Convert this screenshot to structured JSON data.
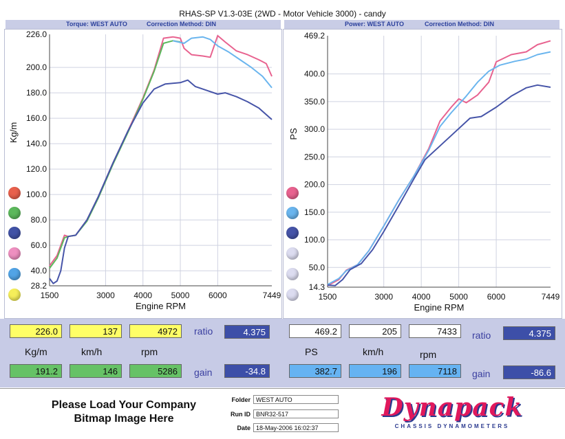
{
  "title": "RHAS-SP V1.3-03E  (2WD - Motor Vehicle 3000) -  candy",
  "left_header": {
    "label": "Torque: WEST AUTO",
    "correction": "Correction Method: DIN"
  },
  "right_header": {
    "label": "Power: WEST AUTO",
    "correction": "Correction Method: DIN"
  },
  "legend_colors": [
    "#e8604c",
    "#5cb85c",
    "#4152a6",
    "#ee8fc0",
    "#52a4e6",
    "#f5ee5a",
    "#e8628f",
    "#6ab5ee",
    "#4654a8",
    "#dcdcf0",
    "#dcdcf0",
    "#dcdcf0"
  ],
  "chart_data": [
    {
      "type": "line",
      "ylabel": "Kg/m",
      "xlabel": "Engine RPM",
      "ylim": [
        28.2,
        226.0
      ],
      "xlim": [
        1500,
        7449
      ],
      "x_ticks": [
        1500,
        3000,
        4000,
        5000,
        6000,
        7449
      ],
      "y_ticks": [
        28.2,
        40.0,
        60.0,
        80.0,
        100.0,
        120.0,
        140.0,
        160.0,
        180.0,
        200.0,
        226.0
      ],
      "y_tick_labels": [
        "28.2",
        "40.0",
        "60.0",
        "80.0",
        "100.0",
        "120.0",
        "140.0",
        "160.0",
        "180.0",
        "200.0",
        "226.0"
      ],
      "grid": true,
      "series": [
        {
          "color": "#e8628f",
          "points": [
            [
              1500,
              44
            ],
            [
              1700,
              52
            ],
            [
              1900,
              68
            ],
            [
              2000,
              67
            ],
            [
              2200,
              68
            ],
            [
              2500,
              80
            ],
            [
              2800,
              98
            ],
            [
              3200,
              125
            ],
            [
              3600,
              150
            ],
            [
              4000,
              176
            ],
            [
              4300,
              198
            ],
            [
              4550,
              223
            ],
            [
              4800,
              224
            ],
            [
              5000,
              223
            ],
            [
              5100,
              215
            ],
            [
              5300,
              210
            ],
            [
              5600,
              209
            ],
            [
              5800,
              208
            ],
            [
              6000,
              225
            ],
            [
              6200,
              220
            ],
            [
              6500,
              213
            ],
            [
              6800,
              210
            ],
            [
              7100,
              206
            ],
            [
              7300,
              203
            ],
            [
              7449,
              193
            ]
          ]
        },
        {
          "color": "#5cb85c",
          "points": [
            [
              1500,
              42
            ],
            [
              1700,
              50
            ],
            [
              1900,
              66
            ],
            [
              2000,
              67
            ],
            [
              2200,
              68
            ],
            [
              2500,
              79
            ],
            [
              2800,
              97
            ],
            [
              3200,
              124
            ],
            [
              3600,
              149
            ],
            [
              4000,
              175
            ],
            [
              4300,
              197
            ],
            [
              4550,
              219
            ],
            [
              4800,
              221
            ],
            [
              5000,
              220
            ]
          ]
        },
        {
          "color": "#6ab5ee",
          "points": [
            [
              4800,
              221
            ],
            [
              5100,
              219
            ],
            [
              5300,
              223
            ],
            [
              5600,
              224
            ],
            [
              5800,
              222
            ],
            [
              6000,
              217
            ],
            [
              6300,
              212
            ],
            [
              6600,
              206
            ],
            [
              6900,
              200
            ],
            [
              7200,
              193
            ],
            [
              7449,
              184
            ]
          ]
        },
        {
          "color": "#4654a8",
          "points": [
            [
              1500,
              34
            ],
            [
              1600,
              30
            ],
            [
              1700,
              32
            ],
            [
              1800,
              40
            ],
            [
              1900,
              58
            ],
            [
              2000,
              67
            ],
            [
              2200,
              68
            ],
            [
              2500,
              80
            ],
            [
              2800,
              98
            ],
            [
              3200,
              125
            ],
            [
              3600,
              150
            ],
            [
              4000,
              172
            ],
            [
              4300,
              183
            ],
            [
              4600,
              187
            ],
            [
              5000,
              188
            ],
            [
              5200,
              190
            ],
            [
              5400,
              185
            ],
            [
              5700,
              182
            ],
            [
              6000,
              179
            ],
            [
              6200,
              180
            ],
            [
              6500,
              177
            ],
            [
              6800,
              173
            ],
            [
              7100,
              168
            ],
            [
              7449,
              159
            ]
          ]
        }
      ]
    },
    {
      "type": "line",
      "ylabel": "PS",
      "xlabel": "Engine RPM",
      "ylim": [
        14.3,
        469.2
      ],
      "xlim": [
        1500,
        7449
      ],
      "x_ticks": [
        1500,
        3000,
        4000,
        5000,
        6000,
        7449
      ],
      "y_ticks": [
        14.3,
        50.0,
        100.0,
        150.0,
        200.0,
        250.0,
        300.0,
        350.0,
        400.0,
        469.2
      ],
      "y_tick_labels": [
        "14.3",
        "50.0",
        "100.0",
        "150.0",
        "200.0",
        "250.0",
        "300.0",
        "350.0",
        "400.0",
        "469.2"
      ],
      "grid": true,
      "series": [
        {
          "color": "#e8628f",
          "points": [
            [
              1500,
              17
            ],
            [
              1800,
              28
            ],
            [
              2000,
              45
            ],
            [
              2300,
              55
            ],
            [
              2600,
              80
            ],
            [
              3000,
              125
            ],
            [
              3400,
              172
            ],
            [
              3800,
              215
            ],
            [
              4200,
              265
            ],
            [
              4500,
              315
            ],
            [
              4800,
              340
            ],
            [
              5000,
              355
            ],
            [
              5200,
              348
            ],
            [
              5500,
              362
            ],
            [
              5800,
              385
            ],
            [
              6000,
              422
            ],
            [
              6400,
              435
            ],
            [
              6800,
              440
            ],
            [
              7100,
              453
            ],
            [
              7449,
              460
            ]
          ]
        },
        {
          "color": "#6ab5ee",
          "points": [
            [
              1500,
              19
            ],
            [
              1800,
              30
            ],
            [
              2000,
              44
            ],
            [
              2300,
              55
            ],
            [
              2600,
              80
            ],
            [
              3000,
              125
            ],
            [
              3400,
              172
            ],
            [
              3800,
              215
            ],
            [
              4200,
              262
            ],
            [
              4500,
              305
            ],
            [
              4800,
              330
            ],
            [
              5200,
              360
            ],
            [
              5500,
              385
            ],
            [
              5800,
              405
            ],
            [
              6100,
              416
            ],
            [
              6500,
              423
            ],
            [
              6800,
              427
            ],
            [
              7100,
              435
            ],
            [
              7449,
              440
            ]
          ]
        },
        {
          "color": "#4654a8",
          "points": [
            [
              1500,
              18
            ],
            [
              1700,
              17
            ],
            [
              1900,
              28
            ],
            [
              2100,
              46
            ],
            [
              2400,
              57
            ],
            [
              2700,
              82
            ],
            [
              3000,
              115
            ],
            [
              3400,
              162
            ],
            [
              3800,
              210
            ],
            [
              4100,
              245
            ],
            [
              4500,
              270
            ],
            [
              4900,
              295
            ],
            [
              5300,
              320
            ],
            [
              5600,
              323
            ],
            [
              6000,
              340
            ],
            [
              6400,
              360
            ],
            [
              6800,
              375
            ],
            [
              7100,
              380
            ],
            [
              7449,
              376
            ]
          ]
        }
      ]
    }
  ],
  "readings": {
    "row1_left": [
      "226.0",
      "137",
      "4972"
    ],
    "row1_right": [
      "469.2",
      "205",
      "7433"
    ],
    "row2_left": [
      "191.2",
      "146",
      "5286"
    ],
    "row2_right": [
      "382.7",
      "196",
      "7118"
    ],
    "labels_left": [
      "Kg/m",
      "km/h",
      "rpm"
    ],
    "labels_right": [
      "PS",
      "km/h",
      "rpm"
    ],
    "ratio_label": "ratio",
    "ratio_left": "4.375",
    "ratio_right": "4.375",
    "gain_label": "gain",
    "gain_left": "-34.8",
    "gain_right": "-86.6"
  },
  "footer": {
    "company_line1": "Please Load Your Company",
    "company_line2": "Bitmap Image Here",
    "folder_label": "Folder",
    "folder_value": "WEST AUTO",
    "runid_label": "Run ID",
    "runid_value": "BNR32-517",
    "date_label": "Date",
    "date_value": "18-May-2006  16:02:37",
    "logo_text": "Dynapack",
    "logo_sub": "CHASSIS   DYNAMOMETERS"
  }
}
